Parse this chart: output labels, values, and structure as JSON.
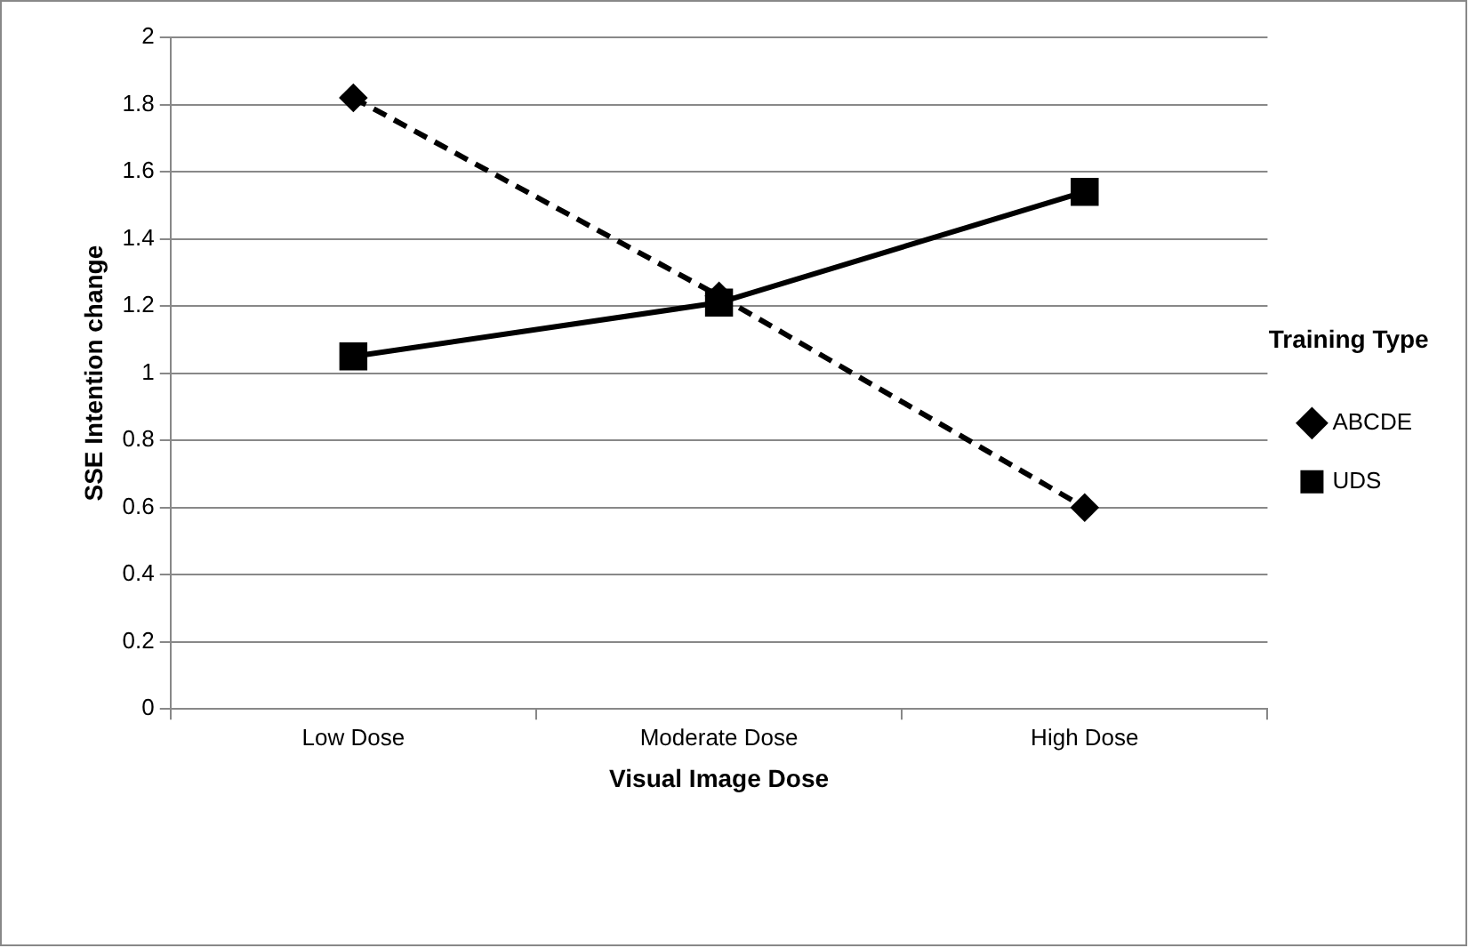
{
  "chart_data": {
    "type": "line",
    "xlabel": "Visual Image Dose",
    "ylabel": "SSE Intention change",
    "legend_title": "Training Type",
    "categories": [
      "Low Dose",
      "Moderate Dose",
      "High Dose"
    ],
    "series": [
      {
        "name": "ABCDE",
        "color": "#000000",
        "values": [
          1.82,
          1.23,
          0.6
        ],
        "marker": "diamond",
        "line_style": "dashed"
      },
      {
        "name": "UDS",
        "color": "#000000",
        "values": [
          1.05,
          1.21,
          1.54
        ],
        "marker": "square",
        "line_style": "solid"
      }
    ],
    "ylim": [
      0,
      2
    ],
    "yticks": [
      0,
      0.2,
      0.4,
      0.6,
      0.8,
      1,
      1.2,
      1.4,
      1.6,
      1.8,
      2
    ],
    "grid": "y",
    "legend": "right"
  }
}
